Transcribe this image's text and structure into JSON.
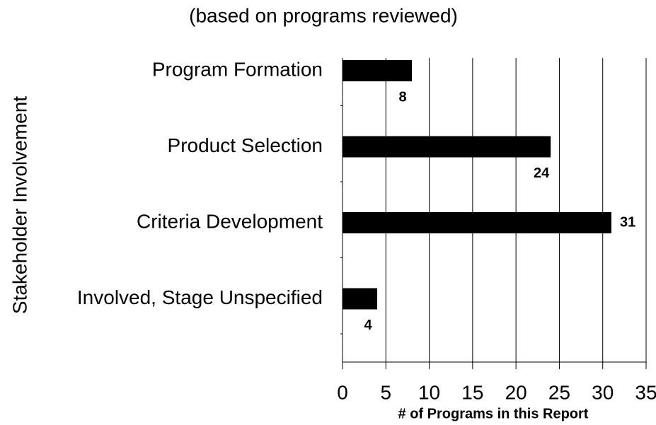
{
  "chart_data": {
    "type": "bar",
    "orientation": "horizontal",
    "subtitle": "(based on programs reviewed)",
    "ylabel": "Stakeholder Involvement",
    "xlabel": "# of Programs in this Report",
    "categories": [
      "Program Formation",
      "Product Selection",
      "Criteria Development",
      "Involved, Stage Unspecified"
    ],
    "values": [
      8,
      24,
      31,
      4
    ],
    "color": "#000000",
    "xlim": [
      0,
      35
    ],
    "xticks": [
      0,
      5,
      10,
      15,
      20,
      25,
      30,
      35
    ],
    "grid": true
  }
}
